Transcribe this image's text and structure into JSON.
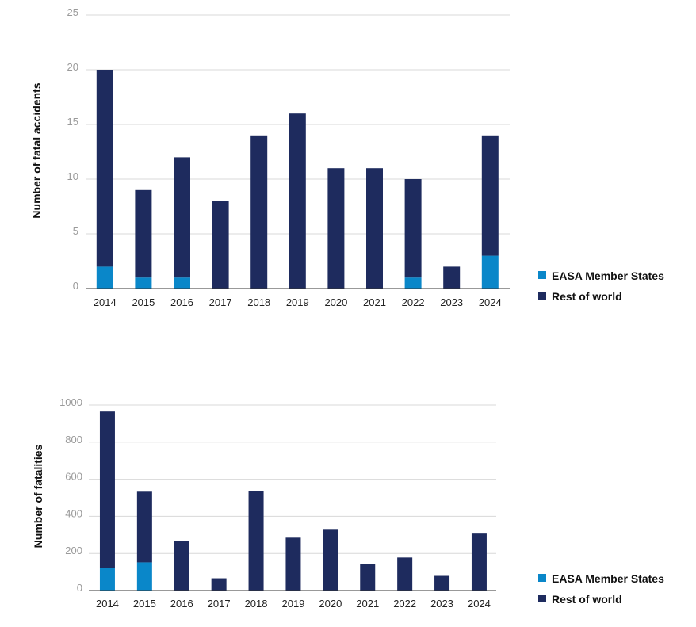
{
  "colors": {
    "easa": "#0a87c9",
    "rest": "#1e2b5e"
  },
  "chart_data": [
    {
      "type": "bar",
      "stacked": true,
      "title": "",
      "ylabel": "Number of fatal accidents",
      "xlabel": "",
      "ylim": [
        0,
        25
      ],
      "yticks": [
        0,
        5,
        10,
        15,
        20,
        25
      ],
      "grid": true,
      "legend_position": "right",
      "categories": [
        "2014",
        "2015",
        "2016",
        "2017",
        "2018",
        "2019",
        "2020",
        "2021",
        "2022",
        "2023",
        "2024"
      ],
      "series": [
        {
          "name": "EASA Member States",
          "values": [
            2,
            1,
            1,
            0,
            0,
            0,
            0,
            0,
            1,
            0,
            3
          ]
        },
        {
          "name": "Rest of world",
          "values": [
            18,
            8,
            11,
            8,
            14,
            16,
            11,
            11,
            9,
            2,
            11
          ]
        }
      ]
    },
    {
      "type": "bar",
      "stacked": true,
      "title": "",
      "ylabel": "Number of fatalities",
      "xlabel": "",
      "ylim": [
        0,
        1000
      ],
      "yticks": [
        0,
        200,
        400,
        600,
        800,
        1000
      ],
      "grid": true,
      "legend_position": "right",
      "categories": [
        "2014",
        "2015",
        "2016",
        "2017",
        "2018",
        "2019",
        "2020",
        "2021",
        "2022",
        "2023",
        "2024"
      ],
      "series": [
        {
          "name": "EASA Member States",
          "values": [
            122,
            152,
            0,
            0,
            0,
            0,
            0,
            0,
            0,
            0,
            0
          ]
        },
        {
          "name": "Rest of world",
          "values": [
            843,
            381,
            265,
            66,
            538,
            285,
            332,
            141,
            178,
            79,
            307
          ]
        }
      ]
    }
  ]
}
